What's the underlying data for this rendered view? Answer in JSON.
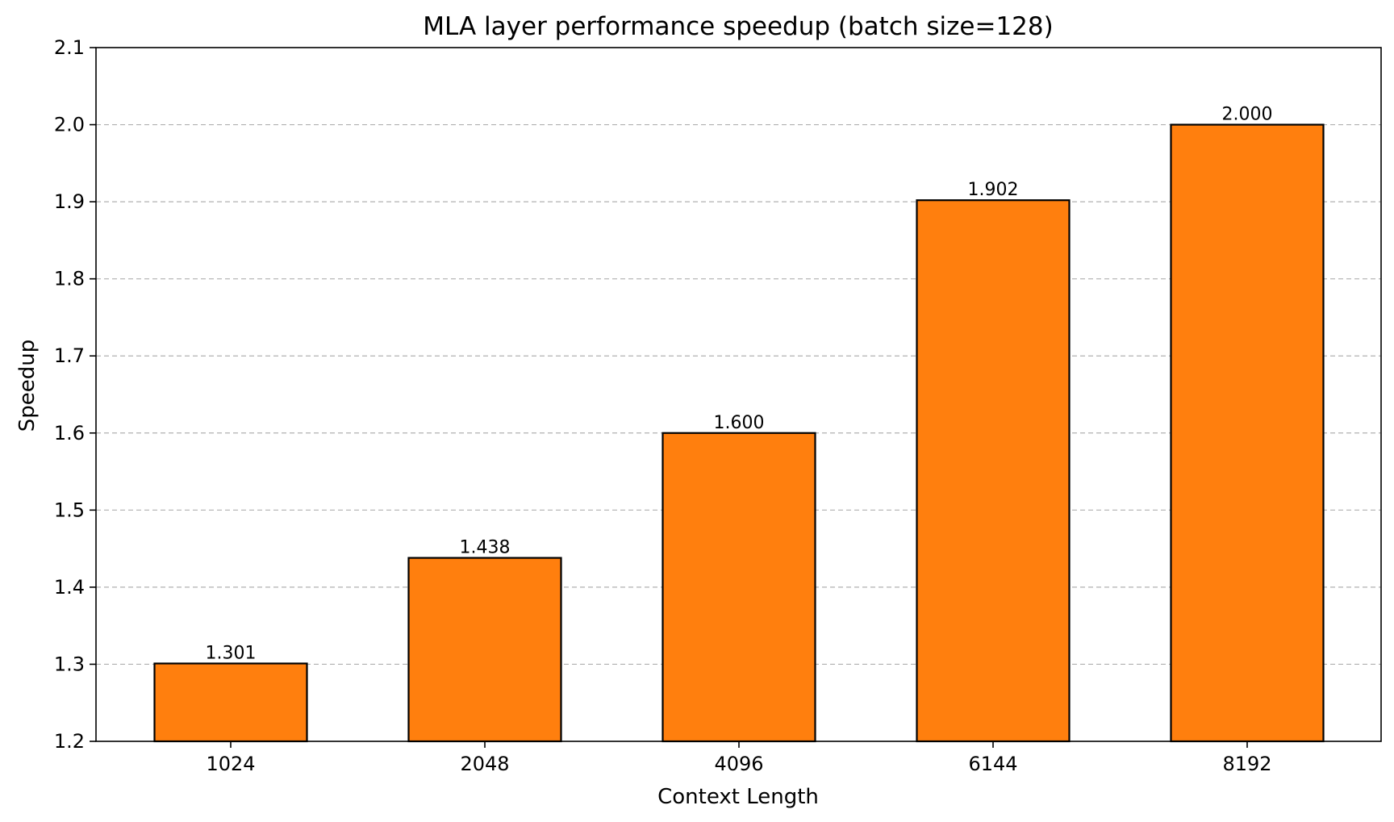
{
  "chart_data": {
    "type": "bar",
    "title": "MLA layer performance speedup (batch size=128)",
    "xlabel": "Context Length",
    "ylabel": "Speedup",
    "categories": [
      "1024",
      "2048",
      "4096",
      "6144",
      "8192"
    ],
    "values": [
      1.301,
      1.438,
      1.6,
      1.902,
      2.0
    ],
    "value_labels": [
      "1.301",
      "1.438",
      "1.600",
      "1.902",
      "2.000"
    ],
    "ylim": [
      1.2,
      2.1
    ],
    "yticks": [
      "1.2",
      "1.3",
      "1.4",
      "1.5",
      "1.6",
      "1.7",
      "1.8",
      "1.9",
      "2.0",
      "2.1"
    ],
    "grid": "horizontal dashed",
    "legend": "none"
  },
  "colors": {
    "bar_fill": "#ff7f0e",
    "bar_edge": "#000000",
    "grid": "#b0b0b0",
    "axis": "#000000",
    "background": "#ffffff"
  }
}
